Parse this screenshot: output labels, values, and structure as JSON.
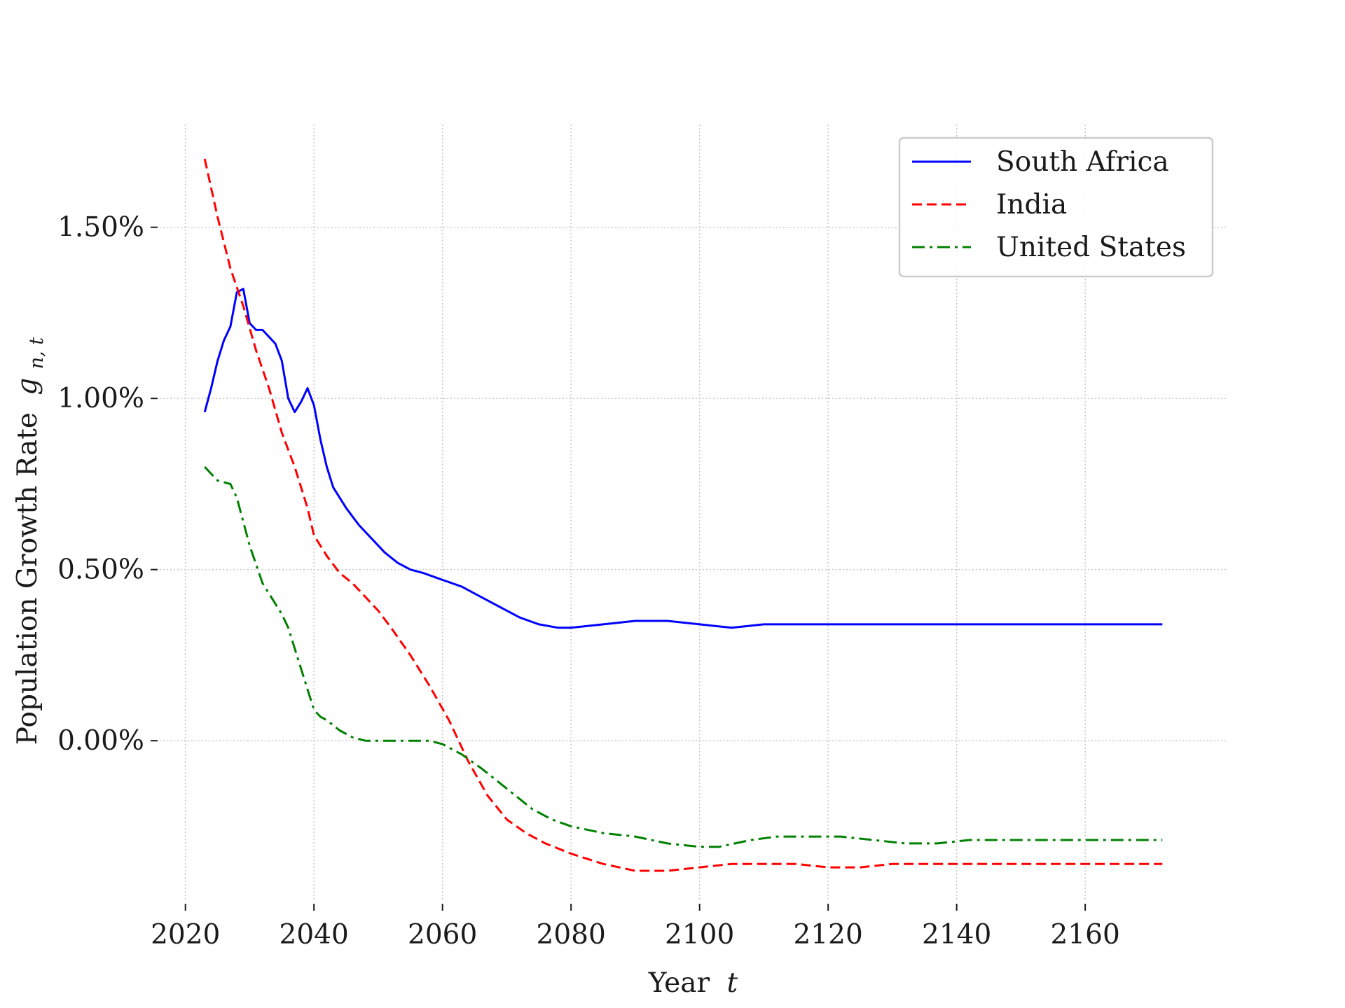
{
  "chart_data": {
    "type": "line",
    "title": "",
    "xlabel": "Year",
    "xlabel_var": "t",
    "ylabel": "Population Growth Rate",
    "ylabel_var": "g",
    "ylabel_sub": "n, t",
    "xlim": [
      2016,
      2182
    ],
    "ylim": [
      -0.47,
      1.8
    ],
    "x_ticks": [
      2020,
      2040,
      2060,
      2080,
      2100,
      2120,
      2140,
      2160
    ],
    "x_tick_labels": [
      "2020",
      "2040",
      "2060",
      "2080",
      "2100",
      "2120",
      "2140",
      "2160"
    ],
    "y_ticks": [
      0.0,
      0.5,
      1.0,
      1.5
    ],
    "y_tick_labels": [
      "0.00%",
      "0.50%",
      "1.00%",
      "1.50%"
    ],
    "y_unit": "%",
    "grid": true,
    "legend_position": "top-right",
    "series": [
      {
        "name": "South Africa",
        "color": "#0000ff",
        "dash": "solid",
        "x": [
          2023,
          2024,
          2025,
          2026,
          2027,
          2028,
          2029,
          2030,
          2031,
          2032,
          2033,
          2034,
          2035,
          2036,
          2037,
          2038,
          2039,
          2040,
          2041,
          2042,
          2043,
          2045,
          2047,
          2049,
          2051,
          2053,
          2055,
          2057,
          2060,
          2063,
          2066,
          2069,
          2072,
          2075,
          2078,
          2080,
          2085,
          2090,
          2095,
          2100,
          2105,
          2110,
          2115,
          2120,
          2125,
          2130,
          2135,
          2140,
          2145,
          2150,
          2160,
          2172
        ],
        "y": [
          0.96,
          1.03,
          1.11,
          1.17,
          1.21,
          1.31,
          1.32,
          1.22,
          1.2,
          1.2,
          1.18,
          1.16,
          1.11,
          1.0,
          0.96,
          0.99,
          1.03,
          0.98,
          0.88,
          0.8,
          0.74,
          0.68,
          0.63,
          0.59,
          0.55,
          0.52,
          0.5,
          0.49,
          0.47,
          0.45,
          0.42,
          0.39,
          0.36,
          0.34,
          0.33,
          0.33,
          0.34,
          0.35,
          0.35,
          0.34,
          0.33,
          0.34,
          0.34,
          0.34,
          0.34,
          0.34,
          0.34,
          0.34,
          0.34,
          0.34,
          0.34,
          0.34
        ]
      },
      {
        "name": "India",
        "color": "#ff0000",
        "dash": "dashed",
        "x": [
          2023,
          2025,
          2027,
          2029,
          2031,
          2033,
          2035,
          2037,
          2039,
          2040,
          2042,
          2044,
          2046,
          2048,
          2050,
          2052,
          2055,
          2058,
          2061,
          2064,
          2067,
          2070,
          2073,
          2076,
          2080,
          2085,
          2090,
          2095,
          2100,
          2105,
          2110,
          2115,
          2120,
          2125,
          2130,
          2135,
          2140,
          2145,
          2150,
          2160,
          2172
        ],
        "y": [
          1.7,
          1.53,
          1.38,
          1.27,
          1.14,
          1.03,
          0.9,
          0.8,
          0.68,
          0.6,
          0.54,
          0.49,
          0.46,
          0.42,
          0.38,
          0.33,
          0.25,
          0.16,
          0.06,
          -0.06,
          -0.16,
          -0.23,
          -0.27,
          -0.3,
          -0.33,
          -0.36,
          -0.38,
          -0.38,
          -0.37,
          -0.36,
          -0.36,
          -0.36,
          -0.37,
          -0.37,
          -0.36,
          -0.36,
          -0.36,
          -0.36,
          -0.36,
          -0.36,
          -0.36
        ]
      },
      {
        "name": "United States",
        "color": "#008000",
        "dash": "dashdot",
        "x": [
          2023,
          2025,
          2027,
          2028,
          2030,
          2032,
          2034,
          2035,
          2036,
          2038,
          2040,
          2041,
          2042,
          2044,
          2046,
          2048,
          2050,
          2052,
          2055,
          2058,
          2060,
          2063,
          2066,
          2070,
          2074,
          2077,
          2080,
          2085,
          2090,
          2095,
          2100,
          2103,
          2108,
          2112,
          2117,
          2122,
          2127,
          2132,
          2137,
          2142,
          2144,
          2150,
          2160,
          2172
        ],
        "y": [
          0.8,
          0.76,
          0.75,
          0.71,
          0.57,
          0.46,
          0.4,
          0.37,
          0.33,
          0.21,
          0.09,
          0.07,
          0.06,
          0.03,
          0.01,
          0.0,
          0.0,
          0.0,
          0.0,
          0.0,
          -0.01,
          -0.04,
          -0.08,
          -0.14,
          -0.2,
          -0.23,
          -0.25,
          -0.27,
          -0.28,
          -0.3,
          -0.31,
          -0.31,
          -0.29,
          -0.28,
          -0.28,
          -0.28,
          -0.29,
          -0.3,
          -0.3,
          -0.29,
          -0.29,
          -0.29,
          -0.29,
          -0.29
        ]
      }
    ]
  }
}
